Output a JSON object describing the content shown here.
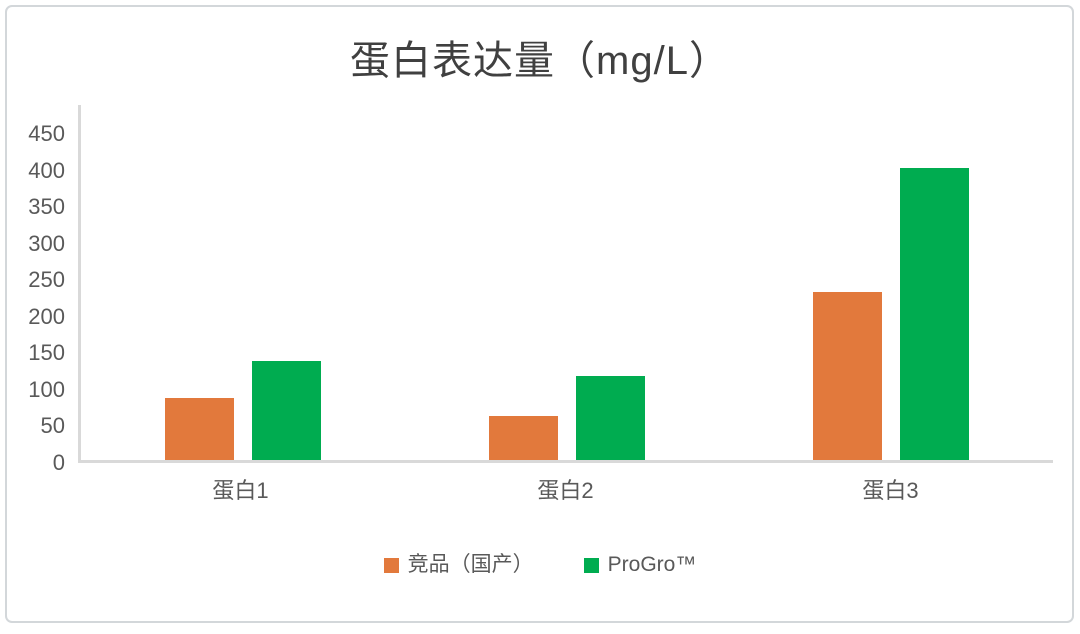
{
  "title": "蛋白表达量（mg/L）",
  "chart_data": {
    "type": "bar",
    "title": "蛋白表达量（mg/L）",
    "categories": [
      "蛋白1",
      "蛋白2",
      "蛋白3"
    ],
    "series": [
      {
        "name": "竞品（国产）",
        "color": "#e2793c",
        "values": [
          85,
          60,
          230
        ]
      },
      {
        "name": "ProGro™",
        "color": "#00ac50",
        "values": [
          135,
          115,
          400
        ]
      }
    ],
    "xlabel": "",
    "ylabel": "",
    "ylim": [
      0,
      450
    ],
    "yticks": [
      0,
      50,
      100,
      150,
      200,
      250,
      300,
      350,
      400,
      450
    ],
    "grid": false,
    "legend_position": "bottom",
    "colors": {
      "axis_line": "#d9d9d9",
      "tick_label": "#595959",
      "title": "#404040",
      "background": "#ffffff",
      "frame_border": "#d3d7da"
    }
  }
}
